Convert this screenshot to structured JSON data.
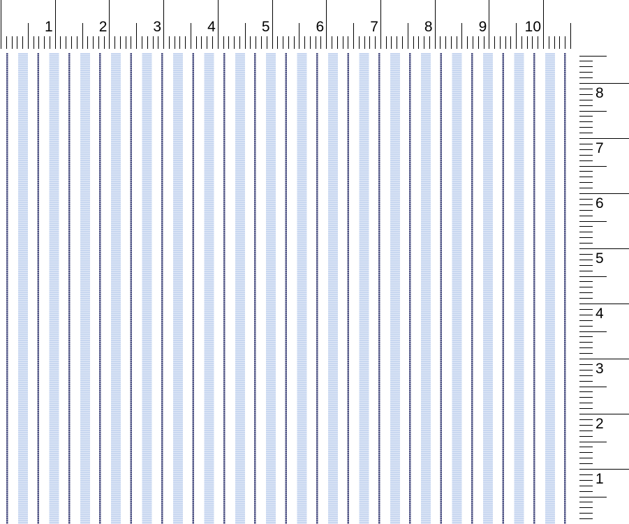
{
  "top_ruler": {
    "labels": [
      "1",
      "2",
      "3",
      "4",
      "5",
      "6",
      "7",
      "8",
      "9",
      "10"
    ]
  },
  "right_ruler": {
    "labels": [
      "8",
      "7",
      "6",
      "5",
      "4",
      "3",
      "2",
      "1"
    ]
  },
  "swatch": {
    "pattern": "vertical pinstripe",
    "colors": {
      "dark_stripe": "#4a4f82",
      "light_stripe": "#bed0ee",
      "ground": "#ffffff"
    }
  }
}
